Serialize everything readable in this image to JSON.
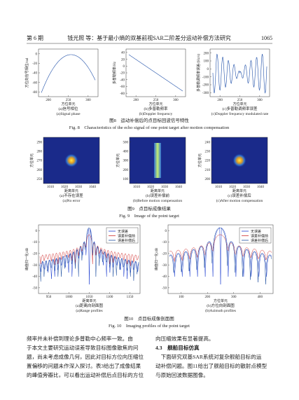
{
  "header": {
    "issue": "第 6 期",
    "title": "钱光照 等：基于最小熵的双基前视SAR二阶差分运动补偿方法研究",
    "page": "1065"
  },
  "figures": [
    {
      "caption_cn": "图8　运动补偿后的点目标回波信号特性",
      "caption_en": "Fig. 8　Characteristics of the echo signal of one point target after motion compensation",
      "panels": [
        {
          "ylabel": "方位向信号相位/rad",
          "xlabel": "方位单元",
          "yticks": [
            0,
            -20,
            -40,
            -60,
            -80
          ],
          "xticks": [
            200,
            250,
            300
          ],
          "caption_cn": "(a)信号相位",
          "caption_en": "(a)Signal phase"
        },
        {
          "ylabel": "多普勒频率/Hz",
          "xlabel": "方位单元",
          "yticks": [
            40,
            20,
            0,
            -20,
            -40,
            -60,
            -80
          ],
          "xticks": [
            200,
            250,
            300
          ],
          "caption_cn": "(b)多普勒频率",
          "caption_en": "(b)Doppler frequency"
        },
        {
          "ylabel": "多普勒调频率误差/(Hz/s)",
          "xlabel": "方位单元",
          "yticks": [
            200,
            100,
            0,
            -100,
            -200,
            -300
          ],
          "xticks": [
            200,
            250,
            300
          ],
          "caption_cn": "(c)多普勒调频率误差",
          "caption_en": "(c)Doppler frequency modulated rate"
        }
      ]
    },
    {
      "caption_cn": "图9　点目标成像结果",
      "caption_en": "Fig. 9　Image of the point target",
      "panels": [
        {
          "ylabel": "方位单元",
          "xlabel": "距离单元",
          "yticks": [
            290,
            280,
            270,
            260,
            250
          ],
          "xticks": [
            1010,
            1020,
            1030,
            1040
          ],
          "caption_cn": "(a)不存在误差",
          "caption_en": "(a)No error"
        },
        {
          "ylabel": "方位单元",
          "xlabel": "距离单元",
          "yticks": [
            500,
            400,
            300,
            200,
            100
          ],
          "xticks": [
            1010,
            1020,
            1030,
            1040
          ],
          "caption_cn": "(b)误差补偿前",
          "caption_en": "(b)Before motion compensation"
        },
        {
          "ylabel": "方位单元",
          "xlabel": "距离单元",
          "yticks": [
            240,
            230,
            220,
            210,
            200
          ],
          "xticks": [
            1010,
            1020,
            1030,
            1040
          ],
          "caption_cn": "(c)误差补偿后",
          "caption_en": "(c)After motion compensation"
        }
      ]
    },
    {
      "caption_cn": "图10　点目标成像剖面图",
      "caption_en": "Fig. 10　Imaging profiles of the point target",
      "panels": [
        {
          "ylabel": "峰值归一化/dB",
          "xlabel": "距离单元",
          "yticks": [
            0,
            -10,
            -20,
            -30,
            -40,
            -50
          ],
          "xticks": [
            950,
            1000,
            1050,
            1100,
            1150
          ],
          "caption_cn": "(a)距离向剖面图",
          "caption_en": "(a)Range profiles",
          "legend": [
            "无误差",
            "误差补偿前",
            "误差补偿后"
          ]
        },
        {
          "ylabel": "峰值归一化/dB",
          "xlabel": "方位单元",
          "yticks": [
            0,
            -10,
            -20,
            -30,
            -40,
            -50
          ],
          "xticks": [
            100,
            200,
            300,
            400
          ],
          "caption_cn": "(b)方位向剖面图",
          "caption_en": "(b)Azimuth profiles",
          "legend": [
            "无误差",
            "误差补偿前",
            "误差补偿后"
          ]
        }
      ]
    }
  ],
  "body": {
    "left": [
      "频率并未补偿到理论多普勒中心频率一致。由",
      "于本文主要研究运动误差导致目标图像散焦的问",
      "题，尚未考虑成像几何，因此对目标方位向压缩位",
      "置偏移的问题未作深入探讨。表3给出了成像结果",
      "的峰值旁瓣比，可以看出运动补偿后点目标的方位"
    ],
    "right": [
      "向压缩效果有显著提高。",
      "4.3　舰船目标仿真",
      "　下面研究双基SAR系统对复杂舰船目标的运",
      "动补偿问题。图11给出了舰船目标的散射点模型",
      "与原始回波数据图像。"
    ]
  }
}
